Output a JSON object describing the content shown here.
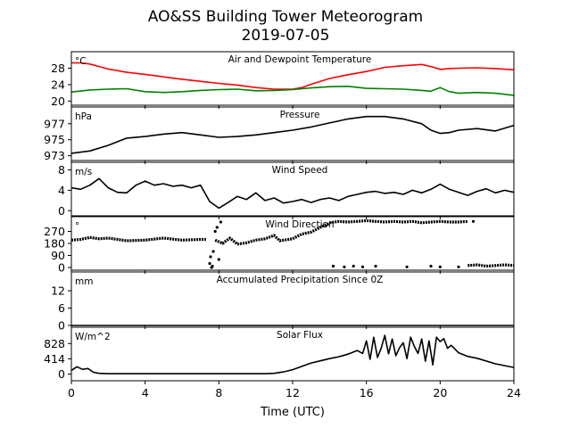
{
  "figure": {
    "title": "AO&SS Building Tower Meteorogram",
    "subtitle": "2019-07-05",
    "xlabel": "Time (UTC)"
  },
  "colors": {
    "temperature": "#ff0000",
    "dewpoint": "#008000",
    "default": "#000000"
  },
  "chart_data": [
    {
      "type": "line",
      "title": "Air and Dewpoint Temperature",
      "unit": "°C",
      "xlim": [
        0,
        24
      ],
      "ylim": [
        19,
        32
      ],
      "yticks": [
        20,
        24,
        28
      ],
      "xticks": [
        0,
        4,
        8,
        12,
        16,
        20,
        24
      ],
      "series": [
        {
          "color": "#ff0000",
          "x": [
            0,
            0.5,
            1,
            1.5,
            2,
            3,
            4,
            5,
            6,
            7,
            8,
            9,
            10,
            11,
            12,
            12.5,
            13,
            13.5,
            14,
            15,
            16,
            17,
            18,
            19,
            19.5,
            20,
            20.5,
            21,
            22,
            23,
            24
          ],
          "y": [
            29.3,
            29.3,
            29.0,
            28.4,
            27.8,
            27.0,
            26.5,
            25.9,
            25.3,
            24.8,
            24.3,
            23.9,
            23.3,
            22.9,
            22.9,
            23.3,
            24.1,
            24.8,
            25.5,
            26.4,
            27.2,
            28.2,
            28.6,
            28.9,
            28.4,
            27.7,
            27.9,
            28.0,
            28.1,
            27.9,
            27.6
          ]
        },
        {
          "color": "#008000",
          "x": [
            0,
            1,
            2,
            3,
            4,
            5,
            6,
            7,
            8,
            9,
            10,
            11,
            12,
            13,
            14,
            15,
            16,
            17,
            18,
            19,
            19.5,
            20,
            20.5,
            21,
            22,
            23,
            24
          ],
          "y": [
            22.2,
            22.7,
            22.9,
            23.0,
            22.3,
            22.1,
            22.3,
            22.6,
            22.8,
            22.9,
            22.5,
            22.6,
            22.8,
            23.2,
            23.5,
            23.6,
            23.1,
            23.0,
            22.9,
            22.6,
            22.4,
            23.3,
            22.3,
            21.9,
            22.1,
            21.9,
            21.4
          ]
        }
      ]
    },
    {
      "type": "line",
      "title": "Pressure",
      "unit": "hPa",
      "xlim": [
        0,
        24
      ],
      "ylim": [
        972.4,
        979.1
      ],
      "yticks": [
        973,
        975,
        977
      ],
      "series": [
        {
          "color": "#000000",
          "x": [
            0,
            1,
            2,
            3,
            4,
            5,
            6,
            7,
            8,
            9,
            10,
            11,
            12,
            13,
            14,
            15,
            16,
            17,
            18,
            19,
            19.5,
            20,
            20.5,
            21,
            22,
            23,
            24
          ],
          "y": [
            973.3,
            973.6,
            974.3,
            975.2,
            975.4,
            975.7,
            975.9,
            975.6,
            975.3,
            975.4,
            975.6,
            975.9,
            976.2,
            976.6,
            977.1,
            977.6,
            977.9,
            977.9,
            977.6,
            977.0,
            976.2,
            975.8,
            975.9,
            976.2,
            976.4,
            976.1,
            976.8
          ]
        }
      ]
    },
    {
      "type": "line",
      "title": "Wind Speed",
      "unit": "m/s",
      "xlim": [
        0,
        24
      ],
      "ylim": [
        -1,
        9.5
      ],
      "yticks": [
        0,
        4,
        8
      ],
      "series": [
        {
          "color": "#000000",
          "x": [
            0,
            0.5,
            1,
            1.5,
            2,
            2.5,
            3,
            3.5,
            4,
            4.5,
            5,
            5.5,
            6,
            6.5,
            7,
            7.5,
            8,
            8.5,
            9,
            9.5,
            10,
            10.5,
            11,
            11.5,
            12,
            12.5,
            13,
            13.5,
            14,
            14.5,
            15,
            15.5,
            16,
            16.5,
            17,
            17.5,
            18,
            18.5,
            19,
            19.5,
            20,
            20.5,
            21,
            21.5,
            22,
            22.5,
            23,
            23.5,
            24
          ],
          "y": [
            4.5,
            4.2,
            5.0,
            6.3,
            4.5,
            3.6,
            3.5,
            5.0,
            5.8,
            5.0,
            5.3,
            4.8,
            5.0,
            4.5,
            5.0,
            1.8,
            0.5,
            1.6,
            2.8,
            2.2,
            3.5,
            2.0,
            2.5,
            1.5,
            1.8,
            2.2,
            1.6,
            2.2,
            2.5,
            2.0,
            2.8,
            3.2,
            3.6,
            3.8,
            3.4,
            3.6,
            3.2,
            4.0,
            3.5,
            4.2,
            5.2,
            4.2,
            3.6,
            3.0,
            3.8,
            4.3,
            3.5,
            4.0,
            3.6
          ]
        }
      ]
    },
    {
      "type": "scatter",
      "title": "Wind Direction",
      "unit": "°",
      "xlim": [
        0,
        24
      ],
      "ylim": [
        -20,
        380
      ],
      "yticks": [
        0,
        90,
        180,
        270
      ],
      "series": [
        {
          "color": "#000000",
          "segments": [
            {
              "x": [
                0,
                0.5,
                1,
                1.5,
                2,
                3,
                4,
                5,
                6,
                7,
                7.3
              ],
              "y": [
                205,
                210,
                225,
                215,
                220,
                200,
                205,
                220,
                205,
                210,
                210
              ]
            },
            {
              "x": [
                7.8,
                8.2,
                8.6,
                9,
                9.5,
                10,
                10.5,
                11,
                11.3,
                12,
                12.5,
                13,
                13.5,
                14
              ],
              "y": [
                205,
                180,
                220,
                175,
                185,
                205,
                215,
                240,
                200,
                215,
                250,
                265,
                300,
                330
              ]
            },
            {
              "x": [
                14,
                14.5,
                15,
                15.5,
                16,
                16.5,
                17,
                17.5,
                18,
                18.5,
                19,
                19.5,
                20,
                20.5,
                21,
                21.5
              ],
              "y": [
                335,
                345,
                340,
                345,
                350,
                345,
                340,
                345,
                340,
                345,
                335,
                340,
                345,
                340,
                340,
                345
              ]
            },
            {
              "x": [
                21.5,
                22,
                22.5,
                23,
                23.5,
                24
              ],
              "y": [
                15,
                20,
                10,
                15,
                20,
                15
              ]
            }
          ],
          "points_x": [
            7.5,
            7.6,
            7.7,
            7.8,
            7.9,
            8.0,
            8.1,
            7.55,
            7.65,
            14.2,
            14.8,
            15.3,
            15.8,
            16.5,
            18.2,
            19.5,
            20.0,
            21.0,
            21.8
          ],
          "points_y": [
            30,
            0,
            120,
            270,
            300,
            60,
            340,
            80,
            10,
            10,
            5,
            10,
            5,
            10,
            5,
            10,
            5,
            5,
            345
          ]
        }
      ]
    },
    {
      "type": "line",
      "title": "Accumulated Precipitation Since 0Z",
      "unit": "mm",
      "xlim": [
        0,
        24
      ],
      "ylim": [
        0,
        18.5
      ],
      "yticks": [
        0,
        6,
        12
      ],
      "series": [
        {
          "color": "#000000",
          "x": [
            0,
            24
          ],
          "y": [
            0,
            0
          ]
        }
      ]
    },
    {
      "type": "line",
      "title": "Solar Flux",
      "unit": "W/m^2",
      "xlim": [
        0,
        24
      ],
      "ylim": [
        -180,
        1270
      ],
      "yticks": [
        0,
        414,
        828
      ],
      "series": [
        {
          "color": "#000000",
          "x": [
            0,
            0.3,
            0.6,
            0.9,
            1.2,
            1.5,
            2,
            4,
            6,
            8,
            10,
            10.5,
            11,
            11.5,
            12,
            12.5,
            13,
            13.5,
            14,
            14.5,
            15,
            15.5,
            15.8,
            16,
            16.2,
            16.4,
            16.6,
            16.8,
            17,
            17.2,
            17.4,
            17.6,
            17.8,
            18,
            18.2,
            18.4,
            18.6,
            18.8,
            19,
            19.2,
            19.4,
            19.6,
            19.8,
            20,
            20.2,
            20.4,
            20.6,
            21,
            21.5,
            22,
            23,
            24
          ],
          "y": [
            100,
            200,
            130,
            150,
            50,
            20,
            10,
            10,
            10,
            10,
            10,
            10,
            20,
            60,
            120,
            210,
            300,
            360,
            420,
            470,
            540,
            640,
            560,
            900,
            400,
            1000,
            450,
            700,
            1050,
            550,
            950,
            500,
            720,
            850,
            420,
            1000,
            750,
            560,
            950,
            350,
            900,
            250,
            1000,
            880,
            960,
            700,
            780,
            580,
            480,
            430,
            280,
            180
          ]
        }
      ]
    }
  ]
}
